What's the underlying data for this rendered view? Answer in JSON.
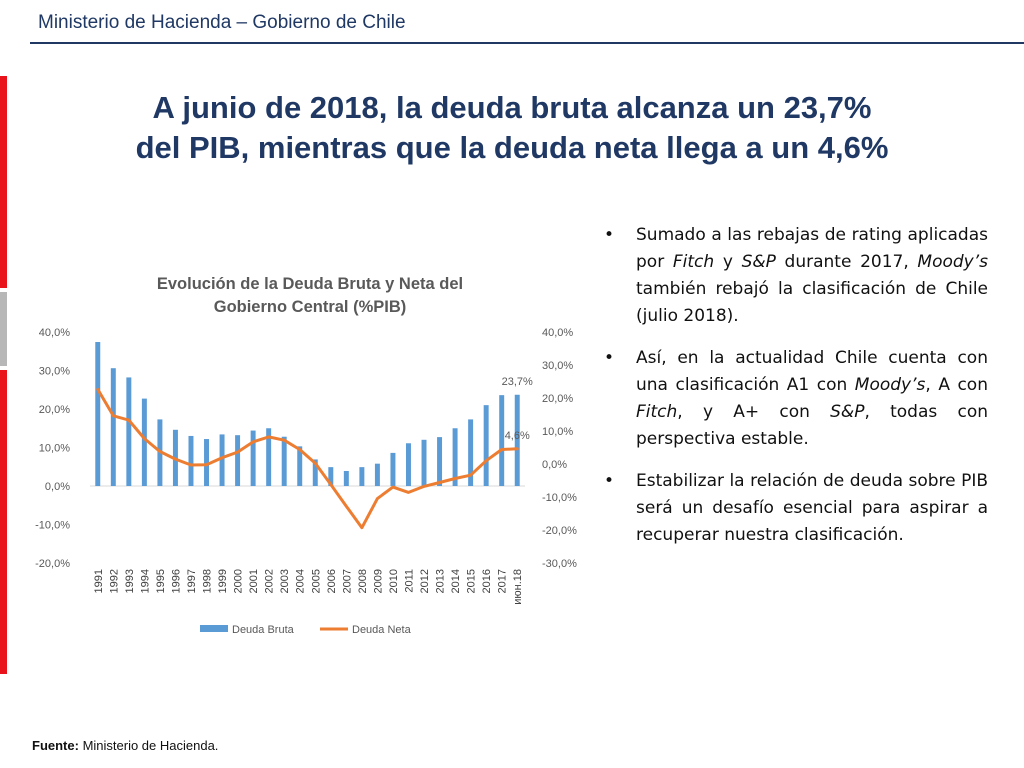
{
  "header": {
    "text": "Ministerio de Hacienda – Gobierno de Chile"
  },
  "title": {
    "line1": "A junio de 2018, la deuda bruta alcanza un 23,7%",
    "line2": "del PIB, mientras que la deuda neta llega a un 4,6%"
  },
  "bullets": [
    [
      {
        "t": "Sumado a las rebajas de rating aplicadas por ",
        "i": false
      },
      {
        "t": "Fitch",
        "i": true
      },
      {
        "t": " y ",
        "i": false
      },
      {
        "t": "S&P",
        "i": true
      },
      {
        "t": " durante 2017, ",
        "i": false
      },
      {
        "t": "Moody’s",
        "i": true
      },
      {
        "t": " también rebajó la clasificación de Chile (julio 2018).",
        "i": false
      }
    ],
    [
      {
        "t": "Así, en la actualidad Chile cuenta con una clasificación A1 con ",
        "i": false
      },
      {
        "t": "Moody’s",
        "i": true
      },
      {
        "t": ", A con ",
        "i": false
      },
      {
        "t": "Fitch",
        "i": true
      },
      {
        "t": ", y A+ con ",
        "i": false
      },
      {
        "t": "S&P",
        "i": true
      },
      {
        "t": ", todas con perspectiva estable.",
        "i": false
      }
    ],
    [
      {
        "t": "Estabilizar la relación de deuda sobre PIB será un desafío esencial para aspirar a recuperar nuestra clasificación.",
        "i": false
      }
    ]
  ],
  "source": {
    "label": "Fuente:",
    "text": " Ministerio de Hacienda."
  },
  "colors": {
    "brand_blue": "#1f3864",
    "accent_red": "#e8131b",
    "bar": "#5b9bd5",
    "line": "#ed7d31"
  },
  "chart_data": {
    "type": "bar",
    "title_lines": [
      "Evolución de la Deuda Bruta y Neta del",
      "Gobierno Central (%PIB)"
    ],
    "categories": [
      "1991",
      "1992",
      "1993",
      "1994",
      "1995",
      "1996",
      "1997",
      "1998",
      "1999",
      "2000",
      "2001",
      "2002",
      "2003",
      "2004",
      "2005",
      "2006",
      "2007",
      "2008",
      "2009",
      "2010",
      "2011",
      "2012",
      "2013",
      "2014",
      "2015",
      "2016",
      "2017",
      "июн.18"
    ],
    "series": [
      {
        "name": "Deuda Bruta",
        "kind": "bar",
        "axis": "left",
        "values": [
          37.4,
          30.6,
          28.2,
          22.7,
          17.3,
          14.6,
          13.0,
          12.2,
          13.4,
          13.2,
          14.4,
          15.0,
          12.8,
          10.3,
          6.9,
          4.9,
          3.9,
          4.9,
          5.8,
          8.6,
          11.1,
          12.0,
          12.7,
          15.0,
          17.3,
          21.0,
          23.6,
          23.7
        ]
      },
      {
        "name": "Deuda Neta",
        "kind": "line",
        "axis": "right",
        "values": [
          22.6,
          14.6,
          13.3,
          7.7,
          3.8,
          1.5,
          -0.3,
          -0.2,
          1.9,
          3.6,
          6.7,
          8.2,
          7.2,
          4.4,
          0.2,
          -6.2,
          -12.8,
          -19.3,
          -10.5,
          -7.0,
          -8.6,
          -6.8,
          -5.6,
          -4.4,
          -3.4,
          1.0,
          4.4,
          4.6
        ]
      }
    ],
    "left_axis": {
      "ylim": [
        -20,
        40
      ],
      "ticks": [
        -20,
        -10,
        0,
        10,
        20,
        30,
        40
      ],
      "tick_labels": [
        "-20,0%",
        "-10,0%",
        "0,0%",
        "10,0%",
        "20,0%",
        "30,0%",
        "40,0%"
      ]
    },
    "right_axis": {
      "ylim": [
        -30,
        40
      ],
      "ticks": [
        -30,
        -20,
        -10,
        0,
        10,
        20,
        30,
        40
      ],
      "tick_labels": [
        "-30,0%",
        "-20,0%",
        "-10,0%",
        "0,0%",
        "10,0%",
        "20,0%",
        "30,0%",
        "40,0%"
      ]
    },
    "annotations": [
      {
        "text": "23,7%",
        "series": "Deuda Bruta",
        "index": 27
      },
      {
        "text": "4,6%",
        "series": "Deuda Neta",
        "index": 27
      }
    ],
    "legend": {
      "position": "bottom",
      "entries": [
        "Deuda Bruta",
        "Deuda Neta"
      ]
    },
    "grid": false
  }
}
